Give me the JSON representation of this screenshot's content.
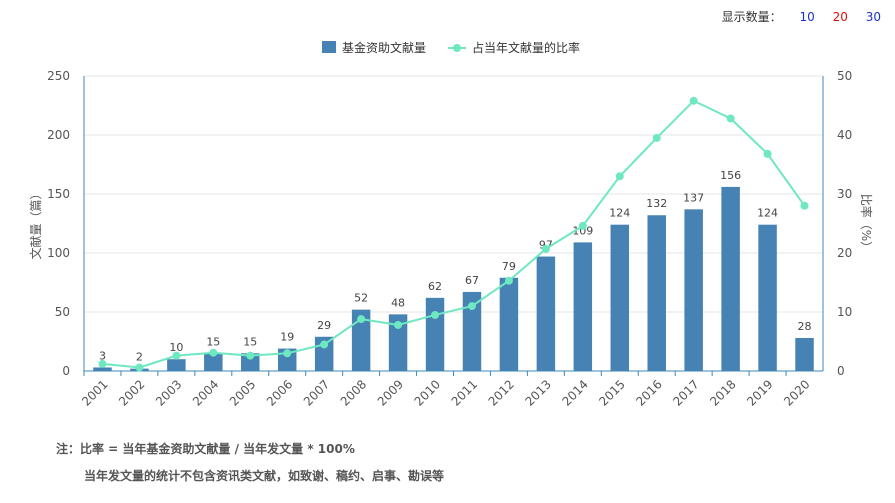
{
  "controls": {
    "display_count_label": "显示数量：",
    "options": [
      "10",
      "20",
      "30"
    ],
    "option_colors": [
      "#1a33cc",
      "#e01010",
      "#1a33cc"
    ]
  },
  "chart_data": {
    "type": "bar",
    "categories": [
      "2001",
      "2002",
      "2003",
      "2004",
      "2005",
      "2006",
      "2007",
      "2008",
      "2009",
      "2010",
      "2011",
      "2012",
      "2013",
      "2014",
      "2015",
      "2016",
      "2017",
      "2018",
      "2019",
      "2020"
    ],
    "series": [
      {
        "name": "基金资助文献量",
        "type": "bar",
        "axis": "left",
        "color": "#4682b4",
        "values": [
          3,
          2,
          10,
          15,
          15,
          19,
          29,
          52,
          48,
          62,
          67,
          79,
          97,
          109,
          124,
          132,
          137,
          156,
          124,
          28
        ]
      },
      {
        "name": "占当年文献量的比率",
        "type": "line",
        "axis": "right",
        "color": "#6ee8c0",
        "values": [
          1.2,
          0.6,
          2.6,
          3.1,
          2.6,
          3.0,
          4.5,
          8.8,
          7.8,
          9.5,
          11.0,
          15.3,
          20.7,
          24.6,
          33.0,
          39.5,
          45.8,
          42.8,
          36.8,
          28.0
        ]
      }
    ],
    "ylabel_left": "文献量（篇）",
    "ylabel_right": "比率（%）",
    "ylim_left": [
      0,
      250
    ],
    "ylim_right": [
      0,
      50
    ],
    "yticks_left": [
      0,
      50,
      100,
      150,
      200,
      250
    ],
    "yticks_right": [
      0,
      10,
      20,
      30,
      40,
      50
    ],
    "legend_position": "top-center",
    "grid": true
  },
  "note": {
    "line1": "注：比率 = 当年基金资助文献量 / 当年发文量 * 100%",
    "line2": "当年发文量的统计不包含资讯类文献，如致谢、稿约、启事、勘误等"
  }
}
